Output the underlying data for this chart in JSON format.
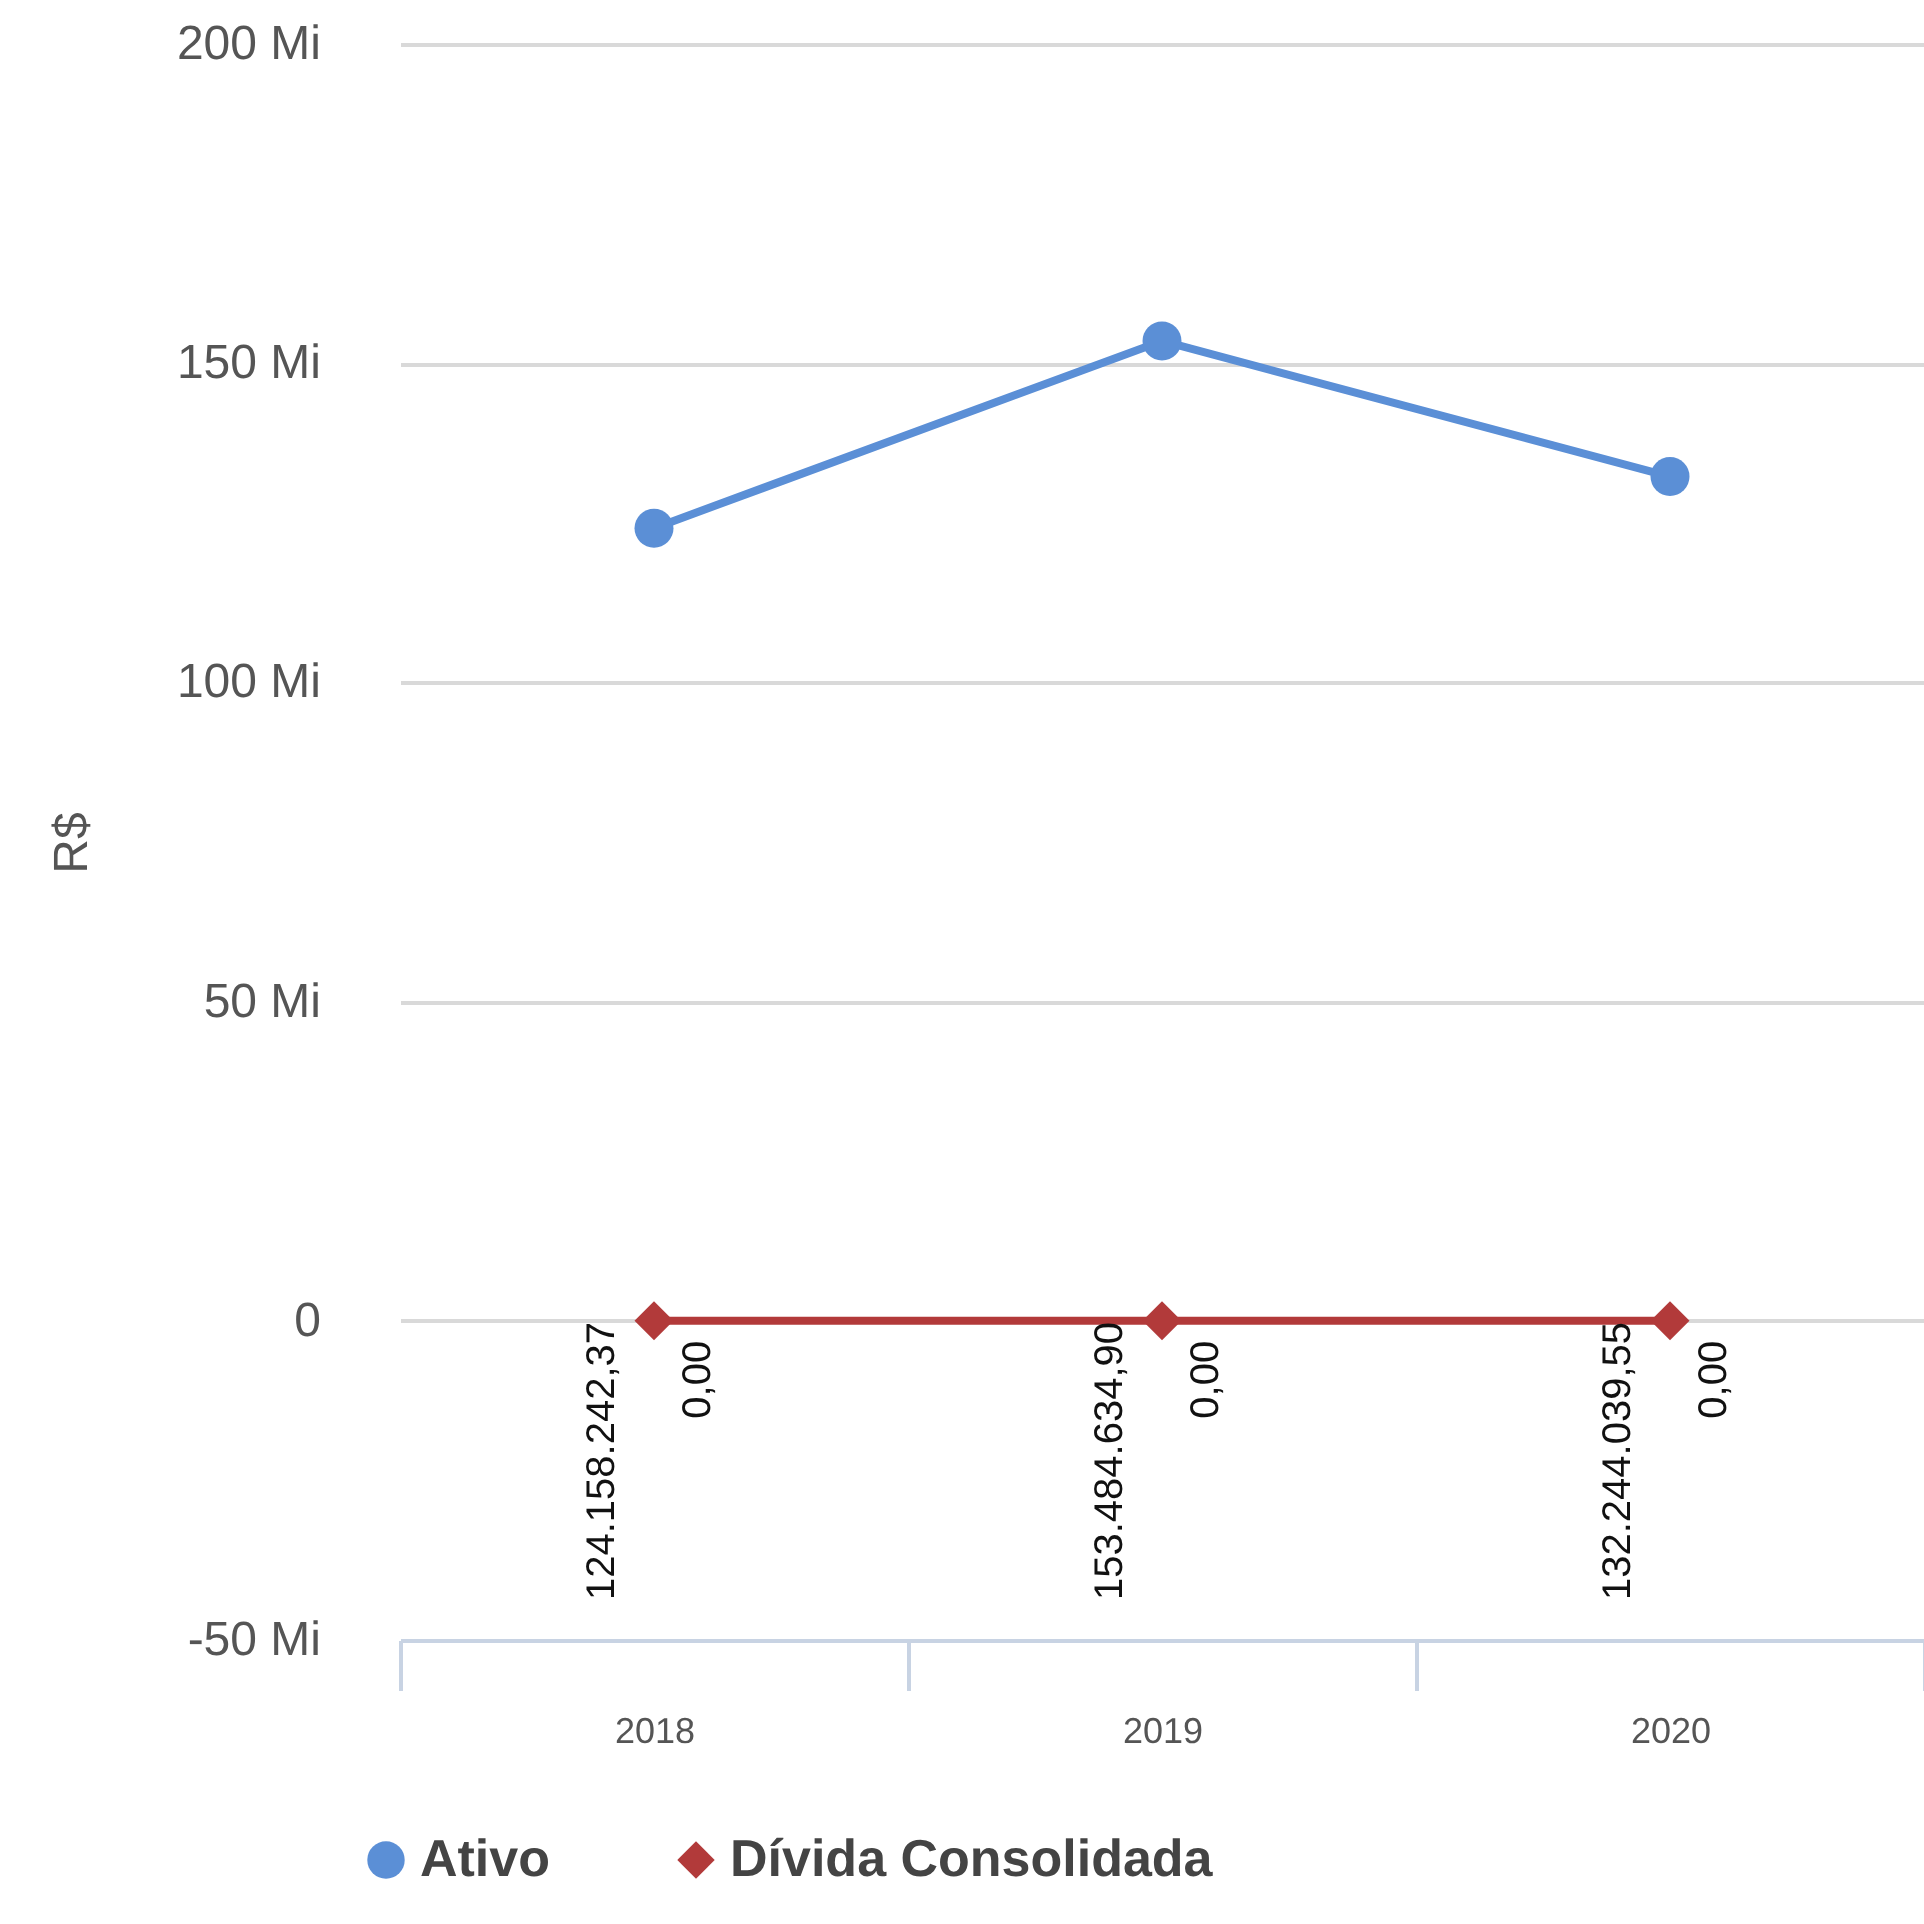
{
  "chart_data": {
    "type": "line",
    "ylabel": "R$",
    "categories": [
      "2018",
      "2019",
      "2020"
    ],
    "series": [
      {
        "name": "Ativo",
        "color": "#5b8fd6",
        "marker": "circle",
        "values": [
          124.16,
          153.48,
          132.24
        ]
      },
      {
        "name": "Dívida Consolidada",
        "color": "#b23a3a",
        "marker": "diamond",
        "values": [
          0,
          0,
          0
        ],
        "value_labels": [
          "0,00",
          "0,00",
          "0,00"
        ]
      }
    ],
    "ylim": [
      -50,
      200
    ],
    "yticks": [
      {
        "value": -50,
        "label": "-50 Mi"
      },
      0,
      {
        "value": 50,
        "label": "50 Mi"
      },
      {
        "value": 100,
        "label": "100 Mi"
      },
      {
        "value": 150,
        "label": "150 Mi"
      },
      {
        "value": 200,
        "label": "200 Mi"
      }
    ],
    "annotations": [
      "124.158.242,37",
      "153.484.634,90",
      "132.244.039,55"
    ],
    "grid": "y",
    "legend": "bottom",
    "line_style": "solid"
  }
}
